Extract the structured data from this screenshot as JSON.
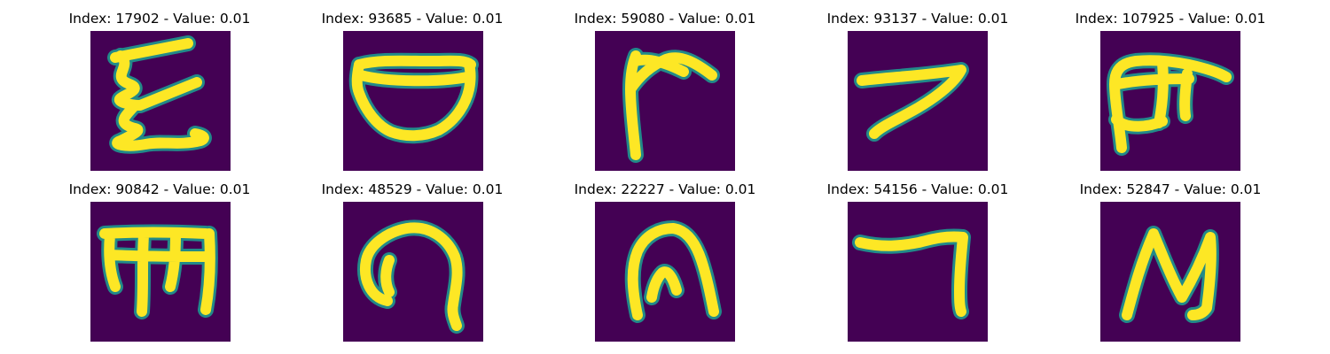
{
  "figure": {
    "panels": [
      {
        "index": "17902",
        "value": "0.01",
        "title": "Index: 17902 - Value: 0.01"
      },
      {
        "index": "93685",
        "value": "0.01",
        "title": "Index: 93685 - Value: 0.01"
      },
      {
        "index": "59080",
        "value": "0.01",
        "title": "Index: 59080 - Value: 0.01"
      },
      {
        "index": "93137",
        "value": "0.01",
        "title": "Index: 93137 - Value: 0.01"
      },
      {
        "index": "107925",
        "value": "0.01",
        "title": "Index: 107925 - Value: 0.01"
      },
      {
        "index": "90842",
        "value": "0.01",
        "title": "Index: 90842 - Value: 0.01"
      },
      {
        "index": "48529",
        "value": "0.01",
        "title": "Index: 48529 - Value: 0.01"
      },
      {
        "index": "22227",
        "value": "0.01",
        "title": "Index: 22227 - Value: 0.01"
      },
      {
        "index": "54156",
        "value": "0.01",
        "title": "Index: 54156 - Value: 0.01"
      },
      {
        "index": "52847",
        "value": "0.01",
        "title": "Index: 52847 - Value: 0.01"
      }
    ],
    "colors": {
      "background": "#440154",
      "edge": "#21918c",
      "stroke": "#fde725"
    }
  }
}
